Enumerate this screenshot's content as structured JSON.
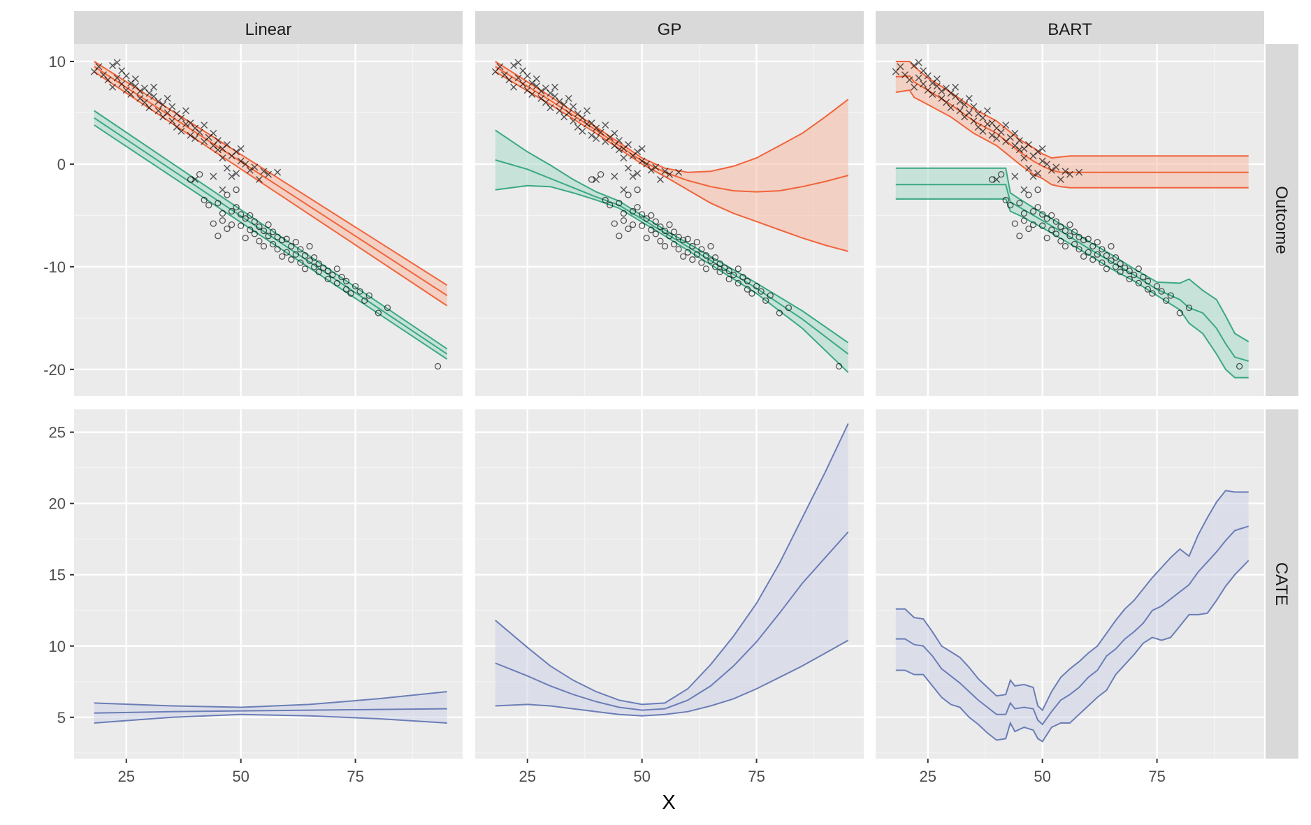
{
  "chart_data": {
    "type": "line",
    "xlabel": "X",
    "columns": [
      "Linear",
      "GP",
      "BART"
    ],
    "rows": [
      "Outcome",
      "CATE"
    ],
    "xlim": [
      13.6,
      98.4
    ],
    "x_ticks": [
      25,
      50,
      75
    ],
    "row_axes": {
      "Outcome": {
        "ylim": [
          -22.6,
          11.7
        ],
        "y_ticks": [
          -20,
          -10,
          0,
          10
        ]
      },
      "CATE": {
        "ylim": [
          2.1,
          26.6
        ],
        "y_ticks": [
          5,
          10,
          15,
          20,
          25
        ]
      }
    },
    "grid": true,
    "colors": {
      "treated": "#f0643c",
      "treated_fill": "#f7b9a3",
      "control": "#3aa886",
      "control_fill": "#a9dbc8",
      "cate": "#6b7db6",
      "cate_fill": "#cdd3e8",
      "panel_bg": "#ebebeb",
      "strip_bg": "#d9d9d9"
    },
    "points_treated": [
      [
        18,
        9.0
      ],
      [
        19,
        9.5
      ],
      [
        20,
        8.7
      ],
      [
        21,
        8.2
      ],
      [
        22,
        9.6
      ],
      [
        22,
        7.5
      ],
      [
        23,
        9.9
      ],
      [
        23,
        8.4
      ],
      [
        24,
        7.8
      ],
      [
        24,
        9.1
      ],
      [
        25,
        7.2
      ],
      [
        25,
        8.6
      ],
      [
        26,
        7.9
      ],
      [
        26,
        6.8
      ],
      [
        27,
        7.6
      ],
      [
        27,
        8.3
      ],
      [
        28,
        6.4
      ],
      [
        28,
        7.1
      ],
      [
        29,
        7.4
      ],
      [
        29,
        6.0
      ],
      [
        30,
        6.9
      ],
      [
        30,
        5.5
      ],
      [
        31,
        6.6
      ],
      [
        31,
        7.5
      ],
      [
        32,
        5.2
      ],
      [
        32,
        6.1
      ],
      [
        33,
        5.8
      ],
      [
        33,
        4.6
      ],
      [
        34,
        6.4
      ],
      [
        34,
        5.0
      ],
      [
        35,
        4.2
      ],
      [
        35,
        5.6
      ],
      [
        36,
        4.9
      ],
      [
        36,
        3.6
      ],
      [
        37,
        4.5
      ],
      [
        37,
        3.2
      ],
      [
        38,
        3.9
      ],
      [
        38,
        5.2
      ],
      [
        39,
        2.8
      ],
      [
        39,
        4.0
      ],
      [
        40,
        3.5
      ],
      [
        40,
        2.5
      ],
      [
        41,
        3.1
      ],
      [
        42,
        2.2
      ],
      [
        42,
        3.8
      ],
      [
        43,
        2.6
      ],
      [
        44,
        1.8
      ],
      [
        44,
        3.0
      ],
      [
        45,
        1.4
      ],
      [
        45,
        2.3
      ],
      [
        46,
        1.5
      ],
      [
        46,
        0.6
      ],
      [
        47,
        1.9
      ],
      [
        47,
        -0.4
      ],
      [
        48,
        0.8
      ],
      [
        48,
        -1.2
      ],
      [
        49,
        1.2
      ],
      [
        49,
        -0.9
      ],
      [
        50,
        0.3
      ],
      [
        50,
        1.5
      ],
      [
        51,
        0.0
      ],
      [
        52,
        -0.6
      ],
      [
        53,
        -0.3
      ],
      [
        54,
        -1.5
      ],
      [
        55,
        -0.7
      ],
      [
        56,
        -1.0
      ],
      [
        58,
        -0.8
      ],
      [
        44,
        -1.2
      ],
      [
        46,
        -2.5
      ],
      [
        40,
        -1.5
      ]
    ],
    "points_control": [
      [
        39,
        -1.5
      ],
      [
        41,
        -1.0
      ],
      [
        42,
        -3.5
      ],
      [
        43,
        -4.0
      ],
      [
        44,
        -5.8
      ],
      [
        45,
        -3.8
      ],
      [
        45,
        -7.0
      ],
      [
        46,
        -4.8
      ],
      [
        46,
        -5.5
      ],
      [
        47,
        -3.0
      ],
      [
        47,
        -6.3
      ],
      [
        48,
        -4.6
      ],
      [
        48,
        -5.9
      ],
      [
        49,
        -2.5
      ],
      [
        49,
        -4.2
      ],
      [
        50,
        -6.0
      ],
      [
        50,
        -4.9
      ],
      [
        51,
        -5.3
      ],
      [
        51,
        -7.2
      ],
      [
        52,
        -6.4
      ],
      [
        52,
        -5.0
      ],
      [
        53,
        -6.8
      ],
      [
        53,
        -5.6
      ],
      [
        54,
        -7.5
      ],
      [
        54,
        -6.1
      ],
      [
        55,
        -6.5
      ],
      [
        55,
        -8.0
      ],
      [
        56,
        -7.0
      ],
      [
        56,
        -5.9
      ],
      [
        57,
        -7.8
      ],
      [
        57,
        -6.6
      ],
      [
        58,
        -8.3
      ],
      [
        58,
        -7.1
      ],
      [
        59,
        -7.4
      ],
      [
        59,
        -9.0
      ],
      [
        60,
        -8.6
      ],
      [
        60,
        -7.3
      ],
      [
        61,
        -8.0
      ],
      [
        61,
        -9.3
      ],
      [
        62,
        -8.8
      ],
      [
        62,
        -7.6
      ],
      [
        63,
        -9.6
      ],
      [
        63,
        -8.3
      ],
      [
        64,
        -8.9
      ],
      [
        64,
        -10.2
      ],
      [
        65,
        -9.4
      ],
      [
        65,
        -8.0
      ],
      [
        66,
        -10.0
      ],
      [
        66,
        -9.1
      ],
      [
        67,
        -10.5
      ],
      [
        67,
        -9.7
      ],
      [
        68,
        -10.1
      ],
      [
        69,
        -11.2
      ],
      [
        69,
        -10.4
      ],
      [
        70,
        -10.8
      ],
      [
        71,
        -11.6
      ],
      [
        71,
        -10.2
      ],
      [
        72,
        -11.0
      ],
      [
        73,
        -12.2
      ],
      [
        73,
        -11.4
      ],
      [
        74,
        -12.6
      ],
      [
        75,
        -11.9
      ],
      [
        76,
        -12.4
      ],
      [
        77,
        -13.3
      ],
      [
        78,
        -12.8
      ],
      [
        80,
        -14.5
      ],
      [
        82,
        -14.0
      ],
      [
        93,
        -19.7
      ]
    ],
    "panels": [
      {
        "col": "Linear",
        "row": "Outcome",
        "series": [
          {
            "name": "treated",
            "x": [
              18,
              95
            ],
            "lower": [
              9.0,
              -13.8
            ],
            "mean": [
              9.5,
              -12.8
            ],
            "upper": [
              10.0,
              -11.8
            ]
          },
          {
            "name": "control",
            "x": [
              18,
              95
            ],
            "lower": [
              3.8,
              -19.0
            ],
            "mean": [
              4.5,
              -18.5
            ],
            "upper": [
              5.2,
              -18.0
            ]
          }
        ]
      },
      {
        "col": "GP",
        "row": "Outcome",
        "series": [
          {
            "name": "treated",
            "x": [
              18,
              30,
              40,
              50,
              55,
              60,
              65,
              70,
              75,
              80,
              85,
              90,
              95
            ],
            "lower": [
              9.0,
              5.8,
              3.0,
              0.0,
              -1.2,
              -2.5,
              -3.8,
              -4.8,
              -5.6,
              -6.4,
              -7.2,
              -7.9,
              -8.5
            ],
            "mean": [
              9.5,
              6.2,
              3.3,
              0.3,
              -0.8,
              -1.6,
              -2.2,
              -2.6,
              -2.7,
              -2.6,
              -2.2,
              -1.7,
              -1.1
            ],
            "upper": [
              10.0,
              6.6,
              3.6,
              0.6,
              -0.4,
              -0.8,
              -0.7,
              -0.2,
              0.6,
              1.8,
              3.0,
              4.6,
              6.3
            ]
          },
          {
            "name": "control",
            "x": [
              18,
              25,
              30,
              35,
              40,
              45,
              55,
              65,
              75,
              85,
              95
            ],
            "lower": [
              -2.5,
              -2.1,
              -2.2,
              -2.8,
              -3.5,
              -4.3,
              -7.0,
              -9.8,
              -12.6,
              -16.0,
              -20.3
            ],
            "mean": [
              0.4,
              -0.5,
              -1.4,
              -2.3,
              -3.2,
              -4.0,
              -6.7,
              -9.4,
              -12.1,
              -15.1,
              -18.5
            ],
            "upper": [
              3.3,
              1.2,
              -0.1,
              -1.5,
              -2.7,
              -3.6,
              -6.4,
              -9.0,
              -11.6,
              -14.3,
              -17.4
            ]
          }
        ]
      },
      {
        "col": "BART",
        "row": "Outcome",
        "series": [
          {
            "name": "treated",
            "x": [
              18,
              21,
              22,
              25,
              30,
              35,
              40,
              45,
              48,
              50,
              52,
              54,
              56,
              58,
              95
            ],
            "lower": [
              7.0,
              7.2,
              6.5,
              5.8,
              4.6,
              3.0,
              1.8,
              0.0,
              -1.0,
              -1.4,
              -2.0,
              -2.2,
              -2.3,
              -2.3,
              -2.3
            ],
            "mean": [
              8.5,
              8.6,
              8.0,
              7.2,
              5.8,
              4.2,
              3.0,
              1.2,
              0.3,
              -0.2,
              -0.6,
              -0.8,
              -0.8,
              -0.8,
              -0.8
            ],
            "upper": [
              10.0,
              10.0,
              9.5,
              8.4,
              7.0,
              5.4,
              4.2,
              2.4,
              1.6,
              1.0,
              0.6,
              0.7,
              0.8,
              0.8,
              0.8
            ]
          },
          {
            "name": "control",
            "x": [
              18,
              42,
              43,
              45,
              50,
              55,
              60,
              65,
              70,
              75,
              80,
              82,
              85,
              88,
              90,
              92,
              95
            ],
            "lower": [
              -3.4,
              -3.4,
              -4.6,
              -5.0,
              -6.2,
              -7.5,
              -8.8,
              -10.2,
              -11.4,
              -12.8,
              -14.2,
              -15.5,
              -16.5,
              -18.5,
              -20.0,
              -20.8,
              -20.8
            ],
            "mean": [
              -2.0,
              -2.0,
              -3.7,
              -4.2,
              -5.5,
              -6.8,
              -8.2,
              -9.5,
              -10.8,
              -12.2,
              -13.2,
              -14.0,
              -14.5,
              -16.0,
              -17.5,
              -18.8,
              -19.2
            ],
            "upper": [
              -0.4,
              -0.4,
              -2.8,
              -3.4,
              -4.8,
              -6.1,
              -7.5,
              -8.8,
              -10.2,
              -11.5,
              -11.6,
              -11.2,
              -12.3,
              -13.2,
              -14.8,
              -16.5,
              -17.3
            ]
          }
        ]
      },
      {
        "col": "Linear",
        "row": "CATE",
        "series": [
          {
            "name": "cate",
            "x": [
              18,
              35,
              50,
              65,
              80,
              95
            ],
            "lower": [
              4.6,
              5.0,
              5.2,
              5.1,
              4.9,
              4.6
            ],
            "mean": [
              5.3,
              5.4,
              5.45,
              5.5,
              5.55,
              5.6
            ],
            "upper": [
              6.0,
              5.8,
              5.7,
              5.9,
              6.3,
              6.8
            ]
          }
        ]
      },
      {
        "col": "GP",
        "row": "CATE",
        "series": [
          {
            "name": "cate",
            "x": [
              18,
              25,
              30,
              35,
              40,
              45,
              50,
              55,
              60,
              65,
              70,
              75,
              80,
              85,
              90,
              95
            ],
            "lower": [
              5.8,
              5.9,
              5.8,
              5.6,
              5.4,
              5.2,
              5.1,
              5.2,
              5.4,
              5.8,
              6.3,
              7.0,
              7.8,
              8.6,
              9.5,
              10.4
            ],
            "mean": [
              8.8,
              7.9,
              7.2,
              6.6,
              6.1,
              5.7,
              5.5,
              5.6,
              6.2,
              7.2,
              8.6,
              10.3,
              12.3,
              14.4,
              16.2,
              18.0
            ],
            "upper": [
              11.8,
              9.9,
              8.6,
              7.6,
              6.8,
              6.2,
              5.9,
              6.0,
              7.0,
              8.7,
              10.7,
              13.0,
              15.8,
              19.0,
              22.2,
              25.6
            ]
          }
        ]
      },
      {
        "col": "BART",
        "row": "CATE",
        "series": [
          {
            "name": "cate",
            "x": [
              18,
              20,
              22,
              24,
              26,
              28,
              30,
              32,
              34,
              36,
              38,
              40,
              42,
              43,
              44,
              46,
              48,
              49,
              50,
              52,
              54,
              56,
              58,
              60,
              62,
              64,
              66,
              68,
              70,
              72,
              74,
              76,
              78,
              80,
              82,
              84,
              86,
              88,
              90,
              92,
              95
            ],
            "lower": [
              8.3,
              8.3,
              8.0,
              8.0,
              7.2,
              6.4,
              5.9,
              5.7,
              5.0,
              4.5,
              3.9,
              3.4,
              3.5,
              4.6,
              4.0,
              4.3,
              4.1,
              3.5,
              3.3,
              4.3,
              4.6,
              4.6,
              5.2,
              5.8,
              6.4,
              6.9,
              8.0,
              8.7,
              9.4,
              10.2,
              10.6,
              10.4,
              10.6,
              11.4,
              12.2,
              12.2,
              12.3,
              13.2,
              14.2,
              15.0,
              16.0
            ],
            "mean": [
              10.5,
              10.5,
              10.1,
              10.0,
              9.3,
              8.4,
              7.9,
              7.4,
              6.8,
              6.2,
              5.7,
              5.2,
              5.2,
              6.0,
              5.6,
              5.7,
              5.6,
              4.8,
              4.5,
              5.4,
              6.2,
              6.6,
              7.1,
              7.8,
              8.3,
              9.3,
              9.8,
              10.5,
              11.0,
              11.6,
              12.5,
              12.8,
              13.3,
              13.8,
              14.3,
              15.2,
              15.9,
              16.6,
              17.4,
              18.1,
              18.4
            ],
            "upper": [
              12.6,
              12.6,
              12.0,
              11.9,
              11.0,
              10.0,
              9.6,
              9.2,
              8.5,
              7.7,
              7.1,
              6.5,
              6.6,
              7.6,
              7.2,
              7.3,
              7.1,
              5.8,
              5.5,
              6.8,
              7.8,
              8.4,
              8.9,
              9.5,
              10.0,
              10.9,
              11.8,
              12.6,
              13.2,
              14.0,
              14.8,
              15.5,
              16.2,
              16.8,
              16.3,
              17.8,
              19.0,
              20.1,
              20.9,
              20.8,
              20.8
            ]
          }
        ]
      }
    ]
  }
}
